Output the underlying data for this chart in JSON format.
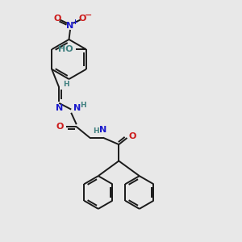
{
  "bg_color": "#e8e8e8",
  "bond_color": "#1a1a1a",
  "N_color": "#1a1acc",
  "O_color": "#cc1a1a",
  "H_color": "#408080",
  "figsize": [
    3.0,
    3.0
  ],
  "dpi": 100,
  "xlim": [
    0,
    10
  ],
  "ylim": [
    0,
    10
  ],
  "lw": 1.4,
  "fs": 8.0,
  "fs_small": 6.5
}
